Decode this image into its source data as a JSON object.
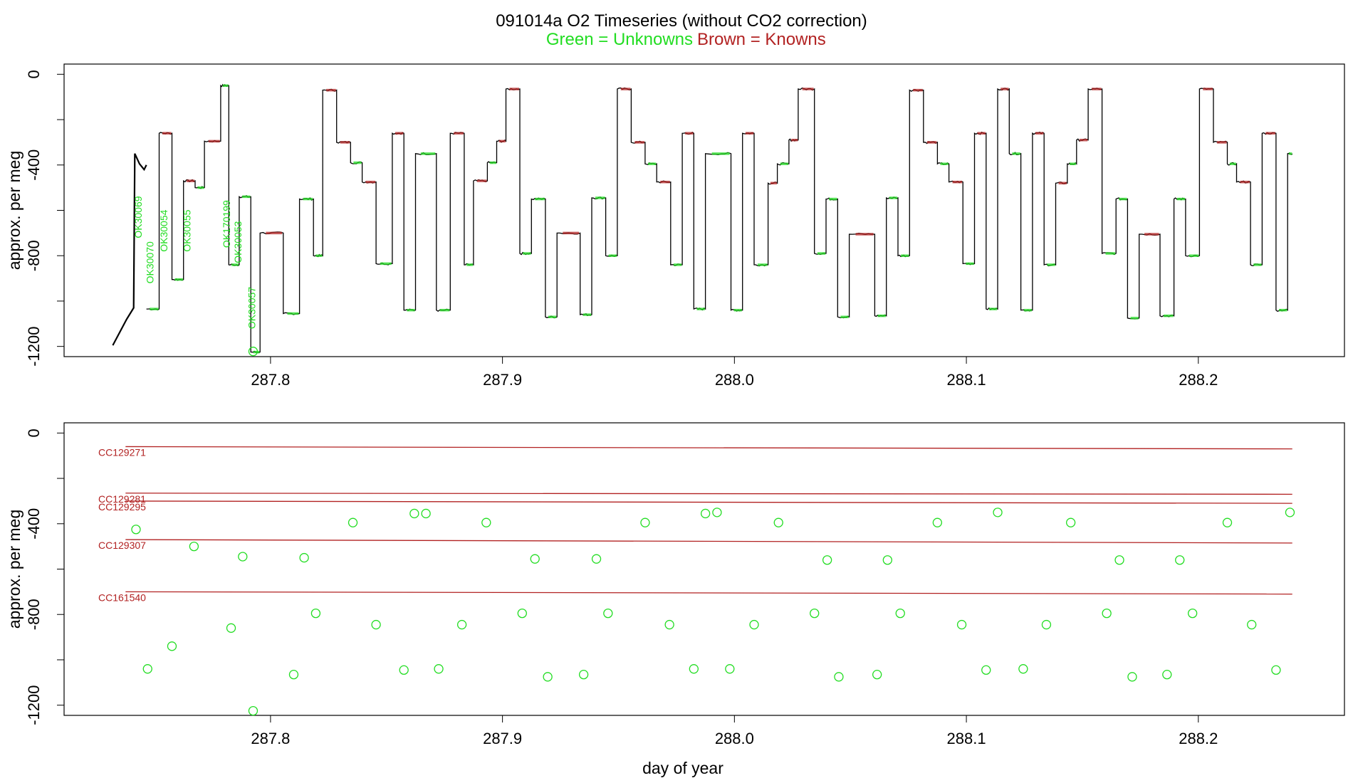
{
  "header": {
    "title": "091014a   O2 Timeseries (without CO2 correction)",
    "legend_green": "Green = Unknowns",
    "legend_brown": "Brown = Knowns"
  },
  "colors": {
    "unknown": "#22dd22",
    "known": "#b22222",
    "trace": "#000000",
    "frame": "#000000"
  },
  "chart_data": [
    {
      "type": "line",
      "panel": "top",
      "title": "091014a   O2 Timeseries (without CO2 correction)",
      "xlabel": "",
      "ylabel": "approx. per meg",
      "xlim": [
        287.711,
        288.263
      ],
      "ylim": [
        -1245,
        45
      ],
      "x_ticks": [
        287.8,
        287.9,
        288.0,
        288.1,
        288.2
      ],
      "x_tick_labels": [
        "287.8",
        "287.9",
        "288.0",
        "288.1",
        "288.2"
      ],
      "y_ticks": [
        0,
        -400,
        -800,
        -1200
      ],
      "y_tick_labels": [
        "0",
        "-400",
        "-800",
        "-1200"
      ],
      "grid": false,
      "intro_trace": [
        [
          287.732,
          -1195
        ],
        [
          287.738,
          -1080
        ],
        [
          287.741,
          -1030
        ],
        [
          287.7415,
          -350
        ],
        [
          287.7435,
          -395
        ],
        [
          287.7455,
          -420
        ],
        [
          287.7465,
          -400
        ]
      ],
      "steps": [
        [
          287.7465,
          -1035
        ],
        [
          287.752,
          -260
        ],
        [
          287.7575,
          -905
        ],
        [
          287.7625,
          -470
        ],
        [
          287.7675,
          -500
        ],
        [
          287.7715,
          -295
        ],
        [
          287.7785,
          -50
        ],
        [
          287.782,
          -840
        ],
        [
          287.7865,
          -540
        ],
        [
          287.7915,
          -1225
        ],
        [
          287.7955,
          -700
        ],
        [
          287.8055,
          -1055
        ],
        [
          287.8125,
          -550
        ],
        [
          287.8185,
          -800
        ],
        [
          287.8225,
          -70
        ],
        [
          287.8285,
          -300
        ],
        [
          287.8345,
          -390
        ],
        [
          287.8395,
          -475
        ],
        [
          287.8455,
          -835
        ],
        [
          287.8525,
          -260
        ],
        [
          287.8575,
          -1040
        ],
        [
          287.8625,
          -350
        ],
        [
          287.8715,
          -1040
        ],
        [
          287.8775,
          -260
        ],
        [
          287.8835,
          -840
        ],
        [
          287.8875,
          -470
        ],
        [
          287.8935,
          -390
        ],
        [
          287.8975,
          -295
        ],
        [
          287.9015,
          -65
        ],
        [
          287.9075,
          -790
        ],
        [
          287.9125,
          -550
        ],
        [
          287.9185,
          -1070
        ],
        [
          287.9235,
          -700
        ],
        [
          287.9335,
          -1060
        ],
        [
          287.9385,
          -545
        ],
        [
          287.9445,
          -800
        ],
        [
          287.9495,
          -65
        ],
        [
          287.9555,
          -300
        ],
        [
          287.9615,
          -395
        ],
        [
          287.9665,
          -475
        ],
        [
          287.9725,
          -840
        ],
        [
          287.9775,
          -260
        ],
        [
          287.9825,
          -1035
        ],
        [
          287.9875,
          -350
        ],
        [
          287.9985,
          -1040
        ],
        [
          288.0035,
          -260
        ],
        [
          288.0085,
          -840
        ],
        [
          288.0145,
          -480
        ],
        [
          288.0185,
          -395
        ],
        [
          288.0235,
          -290
        ],
        [
          288.0275,
          -65
        ],
        [
          288.0345,
          -790
        ],
        [
          288.0395,
          -550
        ],
        [
          288.0445,
          -1070
        ],
        [
          288.0495,
          -705
        ],
        [
          288.0605,
          -1065
        ],
        [
          288.0655,
          -545
        ],
        [
          288.0705,
          -800
        ],
        [
          288.0755,
          -70
        ],
        [
          288.0815,
          -300
        ],
        [
          288.0875,
          -395
        ],
        [
          288.0925,
          -475
        ],
        [
          288.0985,
          -835
        ],
        [
          288.1035,
          -260
        ],
        [
          288.1085,
          -1035
        ],
        [
          288.1135,
          -65
        ],
        [
          288.1185,
          -350
        ],
        [
          288.1235,
          -1040
        ],
        [
          288.1285,
          -260
        ],
        [
          288.1335,
          -840
        ],
        [
          288.1385,
          -480
        ],
        [
          288.1435,
          -395
        ],
        [
          288.1475,
          -290
        ],
        [
          288.1525,
          -65
        ],
        [
          288.1585,
          -790
        ],
        [
          288.1645,
          -550
        ],
        [
          288.1695,
          -1075
        ],
        [
          288.1745,
          -705
        ],
        [
          288.1835,
          -1065
        ],
        [
          288.1895,
          -550
        ],
        [
          288.1945,
          -800
        ],
        [
          288.2005,
          -65
        ],
        [
          288.2065,
          -300
        ],
        [
          288.2125,
          -395
        ],
        [
          288.2165,
          -475
        ],
        [
          288.2225,
          -840
        ],
        [
          288.2275,
          -260
        ],
        [
          288.2335,
          -1040
        ],
        [
          288.2385,
          -350
        ],
        [
          288.2405,
          -350
        ]
      ],
      "cylinder_labels": [
        {
          "text": "OK30069",
          "x": 287.7445,
          "y": -630
        },
        {
          "text": "OK30070",
          "x": 287.7495,
          "y": -830
        },
        {
          "text": "OK30054",
          "x": 287.7555,
          "y": -690
        },
        {
          "text": "OK30055",
          "x": 287.7655,
          "y": -690
        },
        {
          "text": "OK170199",
          "x": 287.7825,
          "y": -660
        },
        {
          "text": "OK30053",
          "x": 287.7875,
          "y": -740
        },
        {
          "text": "OK30057",
          "x": 287.7935,
          "y": -1030
        }
      ]
    },
    {
      "type": "scatter",
      "panel": "bottom",
      "xlabel": "day of year",
      "ylabel": "approx. per meg",
      "xlim": [
        287.711,
        288.263
      ],
      "ylim": [
        -1245,
        45
      ],
      "x_ticks": [
        287.8,
        287.9,
        288.0,
        288.1,
        288.2
      ],
      "x_tick_labels": [
        "287.8",
        "287.9",
        "288.0",
        "288.1",
        "288.2"
      ],
      "y_ticks": [
        0,
        -400,
        -800,
        -1200
      ],
      "y_tick_labels": [
        "0",
        "-400",
        "-800",
        "-1200"
      ],
      "grid": false,
      "reference_lines": [
        {
          "name": "CC129271",
          "y_start": -60,
          "y_end": -70
        },
        {
          "name": "CC129281",
          "y_start": -265,
          "y_end": -270
        },
        {
          "name": "CC129295",
          "y_start": -300,
          "y_end": -310
        },
        {
          "name": "CC129307",
          "y_start": -470,
          "y_end": -485
        },
        {
          "name": "CC161540",
          "y_start": -700,
          "y_end": -710
        }
      ],
      "line_x_range": [
        287.7375,
        288.2405
      ],
      "unknowns": [
        [
          287.742,
          -425
        ],
        [
          287.747,
          -1040
        ],
        [
          287.7575,
          -940
        ],
        [
          287.767,
          -500
        ],
        [
          287.783,
          -860
        ],
        [
          287.788,
          -545
        ],
        [
          287.7925,
          -1225
        ],
        [
          287.81,
          -1065
        ],
        [
          287.8145,
          -550
        ],
        [
          287.8195,
          -795
        ],
        [
          287.8355,
          -395
        ],
        [
          287.8455,
          -845
        ],
        [
          287.8575,
          -1045
        ],
        [
          287.862,
          -355
        ],
        [
          287.867,
          -355
        ],
        [
          287.8725,
          -1040
        ],
        [
          287.8825,
          -845
        ],
        [
          287.893,
          -395
        ],
        [
          287.9085,
          -795
        ],
        [
          287.914,
          -555
        ],
        [
          287.9195,
          -1075
        ],
        [
          287.935,
          -1065
        ],
        [
          287.9405,
          -555
        ],
        [
          287.9455,
          -795
        ],
        [
          287.9615,
          -395
        ],
        [
          287.972,
          -845
        ],
        [
          287.9825,
          -1040
        ],
        [
          287.9875,
          -355
        ],
        [
          287.9925,
          -350
        ],
        [
          287.998,
          -1040
        ],
        [
          288.0085,
          -845
        ],
        [
          288.019,
          -395
        ],
        [
          288.0345,
          -795
        ],
        [
          288.04,
          -560
        ],
        [
          288.045,
          -1075
        ],
        [
          288.0615,
          -1065
        ],
        [
          288.066,
          -560
        ],
        [
          288.0715,
          -795
        ],
        [
          288.0875,
          -395
        ],
        [
          288.098,
          -845
        ],
        [
          288.1085,
          -1045
        ],
        [
          288.1135,
          -350
        ],
        [
          288.1245,
          -1040
        ],
        [
          288.1345,
          -845
        ],
        [
          288.145,
          -395
        ],
        [
          288.1605,
          -795
        ],
        [
          288.166,
          -560
        ],
        [
          288.1715,
          -1075
        ],
        [
          288.1865,
          -1065
        ],
        [
          288.192,
          -560
        ],
        [
          288.1975,
          -795
        ],
        [
          288.2125,
          -395
        ],
        [
          288.223,
          -845
        ],
        [
          288.2335,
          -1045
        ],
        [
          288.2395,
          -350
        ]
      ]
    }
  ]
}
